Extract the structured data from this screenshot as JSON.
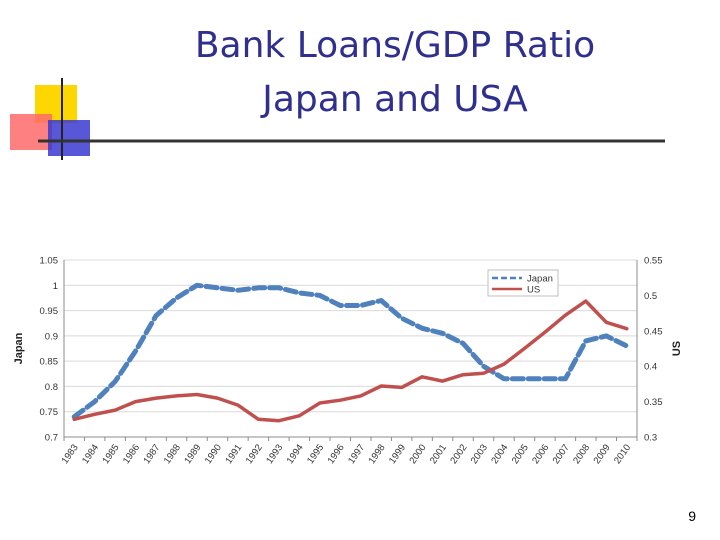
{
  "slide": {
    "title_line1": "Bank Loans/GDP Ratio",
    "title_line2": "Japan and USA",
    "page_number": "9"
  },
  "colors": {
    "title": "#2f2f8f",
    "japan": "#4f81bd",
    "us": "#c0504d",
    "deco_yellow": "#ffd700",
    "deco_red": "#ff5a5a",
    "deco_blue": "#3a3ad0"
  },
  "chart_data": {
    "type": "line",
    "title": "",
    "x": [
      "1983",
      "1984",
      "1985",
      "1986",
      "1987",
      "1988",
      "1989",
      "1990",
      "1991",
      "1992",
      "1993",
      "1994",
      "1995",
      "1996",
      "1997",
      "1998",
      "1999",
      "2000",
      "2001",
      "2002",
      "2003",
      "2004",
      "2005",
      "2006",
      "2007",
      "2008",
      "2009",
      "2010"
    ],
    "series": [
      {
        "name": "Japan",
        "axis": "left",
        "style": "dashed",
        "values": [
          0.74,
          0.77,
          0.81,
          0.87,
          0.94,
          0.975,
          1.0,
          0.995,
          0.99,
          0.995,
          0.995,
          0.985,
          0.98,
          0.96,
          0.96,
          0.97,
          0.935,
          0.915,
          0.905,
          0.885,
          0.84,
          0.815,
          0.815,
          0.815,
          0.815,
          0.89,
          0.9,
          0.88
        ]
      },
      {
        "name": "US",
        "axis": "left_secondary",
        "style": "solid",
        "values": [
          0.325,
          0.332,
          0.338,
          0.35,
          0.355,
          0.358,
          0.36,
          0.355,
          0.345,
          0.325,
          0.323,
          0.33,
          0.348,
          0.352,
          0.358,
          0.372,
          0.37,
          0.385,
          0.379,
          0.388,
          0.39,
          0.403,
          0.425,
          0.448,
          0.472,
          0.492,
          0.462,
          0.453
        ]
      }
    ],
    "y_left": {
      "label": "Japan",
      "range": [
        0.7,
        1.05
      ],
      "ticks": [
        "0.7",
        "0.75",
        "0.8",
        "0.85",
        "0.9",
        "0.95",
        "1",
        "1.05"
      ]
    },
    "y_right": {
      "label": "US",
      "range": [
        0.3,
        0.55
      ],
      "ticks": [
        "0.3",
        "0.35",
        "0.4",
        "0.45",
        "0.5",
        "0.55"
      ]
    },
    "grid": true,
    "legend": "top-center"
  }
}
